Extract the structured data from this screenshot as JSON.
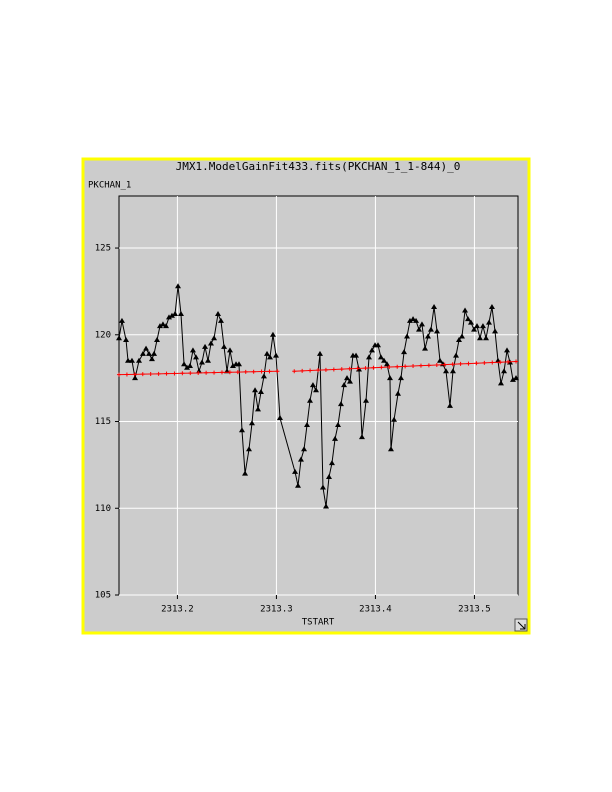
{
  "chart_data": {
    "type": "line",
    "title": "JMX1.ModelGainFit433.fits(PKCHAN_1_1-844)_0",
    "y_label": "PKCHAN_1",
    "x_label": "TSTART",
    "xlim": [
      2313.141,
      2313.544
    ],
    "xticks": [
      2313.2,
      2313.3,
      2313.4,
      2313.5
    ],
    "ylim": [
      105,
      128
    ],
    "yticks": [
      105,
      110,
      115,
      120,
      125
    ],
    "grid": true,
    "series": [
      {
        "color": "#000000",
        "marker": "triangle",
        "x": [
          2313.141,
          2313.144,
          2313.1481,
          2313.1501,
          2313.1541,
          2313.1572,
          2313.1612,
          2313.1652,
          2313.1683,
          2313.1713,
          2313.1743,
          2313.1764,
          2313.1794,
          2313.1824,
          2313.1854,
          2313.1885,
          2313.1915,
          2313.1945,
          2313.1976,
          2313.2006,
          2313.2036,
          2313.2067,
          2313.2097,
          2313.2127,
          2313.2157,
          2313.2188,
          2313.2218,
          2313.2248,
          2313.2279,
          2313.2309,
          2313.2339,
          2313.237,
          2313.241,
          2313.244,
          2313.2471,
          2313.2501,
          2313.2531,
          2313.2561,
          2313.2592,
          2313.2622,
          2313.2652,
          2313.2683,
          2313.2723,
          2313.2753,
          2313.2784,
          2313.2814,
          2313.2844,
          2313.2874,
          2313.2905,
          2313.2935,
          2313.2965,
          2313.2996,
          2313.3036,
          2313.3188,
          2313.3218,
          2313.3248,
          2313.3279,
          2313.3309,
          2313.3339,
          2313.3369,
          2313.34,
          2313.344,
          2313.347,
          2313.3501,
          2313.3531,
          2313.3561,
          2313.3592,
          2313.3622,
          2313.3652,
          2313.3683,
          2313.3713,
          2313.3743,
          2313.3773,
          2313.3804,
          2313.3834,
          2313.3864,
          2313.3905,
          2313.3935,
          2313.3965,
          2313.3996,
          2313.4026,
          2313.4056,
          2313.4087,
          2313.4117,
          2313.4147,
          2313.4157,
          2313.4188,
          2313.4228,
          2313.4258,
          2313.4289,
          2313.4319,
          2313.4349,
          2313.438,
          2313.441,
          2313.444,
          2313.447,
          2313.4501,
          2313.4531,
          2313.4561,
          2313.4592,
          2313.4622,
          2313.4652,
          2313.4682,
          2313.4713,
          2313.4753,
          2313.4783,
          2313.4814,
          2313.4844,
          2313.4874,
          2313.4905,
          2313.4935,
          2313.4965,
          2313.4996,
          2313.5026,
          2313.5056,
          2313.5086,
          2313.5117,
          2313.5147,
          2313.5177,
          2313.5208,
          2313.5238,
          2313.5268,
          2313.5299,
          2313.5329,
          2313.5359,
          2313.5389,
          2313.542
        ],
        "values": [
          119.8,
          120.8,
          119.7,
          118.5,
          118.5,
          117.5,
          118.5,
          118.9,
          119.2,
          118.9,
          118.6,
          118.9,
          119.7,
          120.5,
          120.6,
          120.5,
          121.0,
          121.1,
          121.2,
          122.8,
          121.2,
          118.3,
          118.1,
          118.2,
          119.1,
          118.7,
          117.9,
          118.4,
          119.3,
          118.5,
          119.5,
          119.8,
          121.2,
          120.8,
          119.3,
          117.9,
          119.1,
          118.2,
          118.3,
          118.3,
          114.5,
          112.0,
          113.4,
          114.9,
          116.8,
          115.7,
          116.7,
          117.6,
          118.9,
          118.7,
          120.0,
          118.8,
          115.2,
          112.1,
          111.3,
          112.8,
          113.4,
          114.8,
          116.2,
          117.1,
          116.8,
          118.9,
          111.2,
          110.1,
          111.8,
          112.6,
          114.0,
          114.8,
          116.0,
          117.1,
          117.5,
          117.3,
          118.8,
          118.8,
          118.0,
          114.1,
          116.2,
          118.7,
          119.1,
          119.4,
          119.4,
          118.7,
          118.5,
          118.3,
          117.5,
          113.4,
          115.1,
          116.6,
          117.5,
          119.0,
          119.9,
          120.8,
          120.9,
          120.8,
          120.3,
          120.6,
          119.2,
          119.9,
          120.3,
          121.6,
          120.2,
          118.5,
          118.3,
          117.9,
          115.9,
          117.9,
          118.8,
          119.7,
          119.9,
          121.4,
          120.9,
          120.7,
          120.3,
          120.5,
          119.8,
          120.5,
          119.8,
          120.7,
          121.6,
          120.2,
          118.5,
          117.2,
          117.9,
          119.1,
          118.4,
          117.4,
          117.5
        ]
      },
      {
        "color": "#ff0000",
        "marker": "plus",
        "x": [
          2313.141,
          2313.149,
          2313.157,
          2313.165,
          2313.173,
          2313.181,
          2313.189,
          2313.197,
          2313.205,
          2313.213,
          2313.221,
          2313.229,
          2313.237,
          2313.245,
          2313.253,
          2313.261,
          2313.269,
          2313.277,
          2313.285,
          2313.293,
          2313.301,
          2313.31,
          2313.318,
          2313.326,
          2313.334,
          2313.342,
          2313.35,
          2313.358,
          2313.366,
          2313.374,
          2313.382,
          2313.39,
          2313.398,
          2313.406,
          2313.414,
          2313.422,
          2313.43,
          2313.438,
          2313.446,
          2313.454,
          2313.462,
          2313.47,
          2313.478,
          2313.486,
          2313.494,
          2313.502,
          2313.51,
          2313.518,
          2313.526,
          2313.534,
          2313.542
        ],
        "values": [
          117.7,
          117.71,
          117.72,
          117.73,
          117.74,
          117.75,
          117.76,
          117.77,
          117.78,
          117.79,
          117.8,
          117.81,
          117.82,
          117.83,
          117.84,
          117.85,
          117.86,
          117.87,
          117.88,
          117.89,
          117.9,
          null,
          117.9,
          117.92,
          117.94,
          117.96,
          117.98,
          118.0,
          118.02,
          118.04,
          118.06,
          118.08,
          118.1,
          118.12,
          118.14,
          118.16,
          118.18,
          118.2,
          118.22,
          118.24,
          118.26,
          118.28,
          118.3,
          118.32,
          118.34,
          118.36,
          118.38,
          118.4,
          118.42,
          118.44,
          118.46
        ]
      }
    ]
  }
}
